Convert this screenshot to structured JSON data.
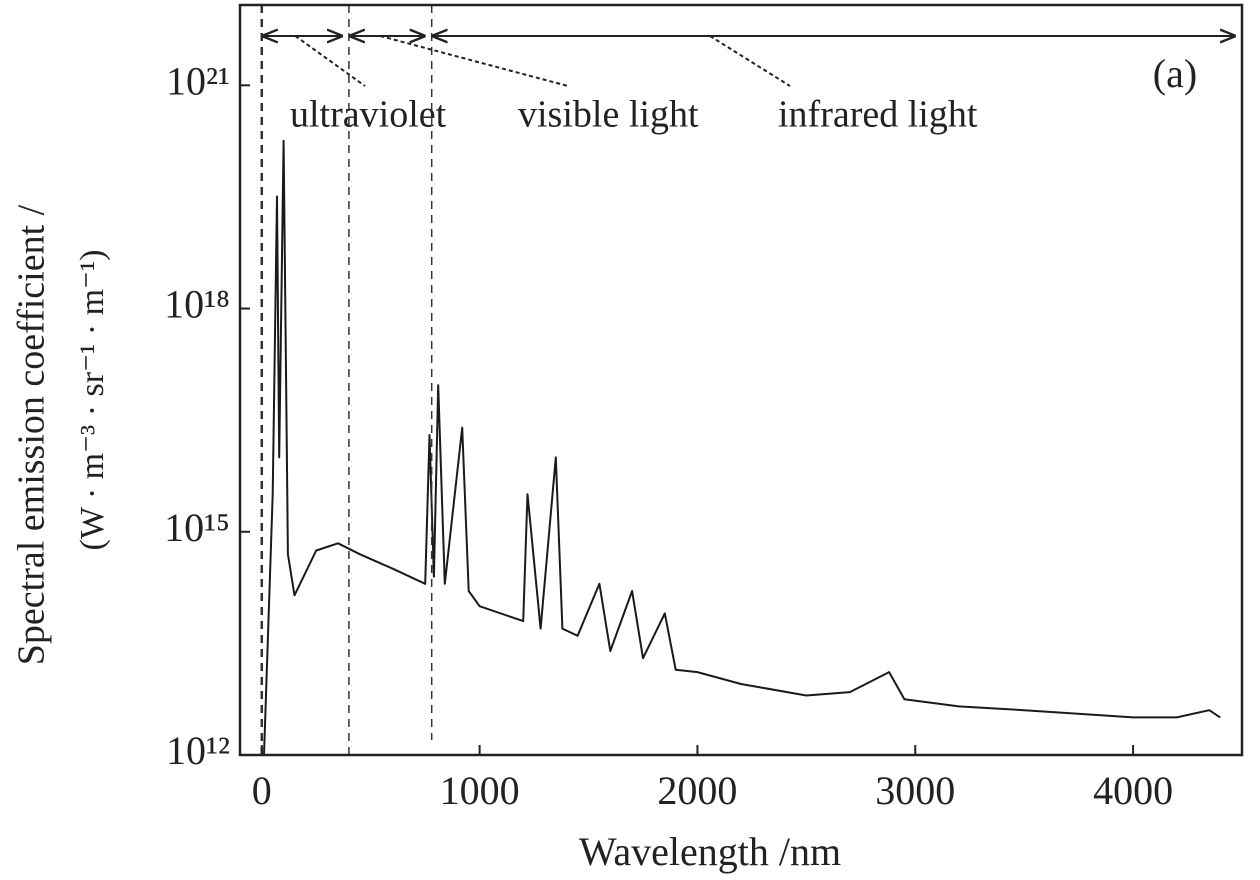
{
  "chart_data": {
    "type": "line",
    "panel_label": "(a)",
    "xlabel": "Wavelength /nm",
    "ylabel": [
      "Spectral emission coefficient /",
      "(W · m⁻³ · sr⁻¹ · m⁻¹)"
    ],
    "xlim": [
      -100,
      4500
    ],
    "ylim": [
      1000000000000.0,
      1.2e+22
    ],
    "yscale": "log",
    "xticks": [
      0,
      1000,
      2000,
      3000,
      4000
    ],
    "yticks": [
      {
        "value": 1000000000000.0,
        "label": "10¹²"
      },
      {
        "value": 1000000000000000.0,
        "label": "10¹⁵"
      },
      {
        "value": 1e+18,
        "label": "10¹⁸"
      },
      {
        "value": 1e+21,
        "label": "10²¹"
      }
    ],
    "regions": [
      {
        "name": "ultraviolet",
        "start": 0,
        "end": 400
      },
      {
        "name": "visible light",
        "start": 400,
        "end": 780
      },
      {
        "name": "infrared light",
        "start": 780,
        "end": 4500
      }
    ],
    "series": [
      {
        "color": "#1a1a1a",
        "x": [
          10,
          50,
          70,
          80,
          100,
          120,
          150,
          250,
          350,
          450,
          600,
          750,
          770,
          790,
          810,
          840,
          920,
          950,
          1000,
          1200,
          1220,
          1280,
          1350,
          1380,
          1450,
          1550,
          1600,
          1700,
          1750,
          1850,
          1900,
          2000,
          2200,
          2500,
          2700,
          2880,
          2950,
          3200,
          3500,
          3800,
          4000,
          4200,
          4350,
          4400
        ],
        "values": [
          1000000000000.0,
          3200000000000000.0,
          3.2e+19,
          1e+16,
          1.8e+20,
          500000000000000.0,
          140000000000000.0,
          560000000000000.0,
          700000000000000.0,
          500000000000000.0,
          320000000000000.0,
          200000000000000.0,
          2e+16,
          250000000000000.0,
          9.3e+16,
          200000000000000.0,
          2.5e+16,
          160000000000000.0,
          100000000000000.0,
          63000000000000.0,
          3200000000000000.0,
          50000000000000.0,
          1e+16,
          50000000000000.0,
          40000000000000.0,
          200000000000000.0,
          25000000000000.0,
          160000000000000.0,
          20000000000000.0,
          80000000000000.0,
          14000000000000.0,
          13000000000000.0,
          9000000000000.0,
          6300000000000.0,
          7000000000000.0,
          13000000000000.0,
          5600000000000.0,
          4500000000000.0,
          4000000000000.0,
          3500000000000.0,
          3200000000000.0,
          3200000000000.0,
          4000000000000.0,
          3200000000000.0
        ]
      }
    ]
  }
}
